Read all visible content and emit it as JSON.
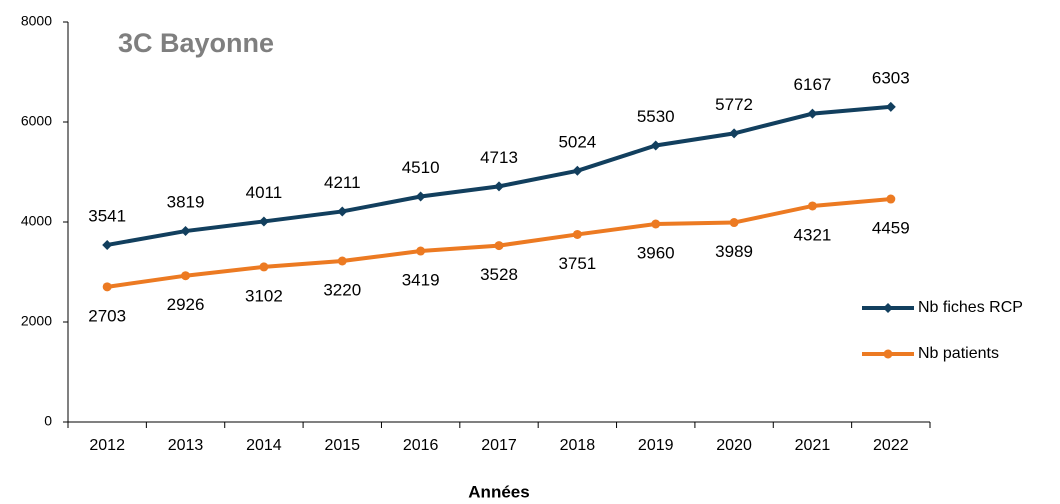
{
  "chart_data": {
    "type": "line",
    "title": "3C Bayonne",
    "x_label": "Années",
    "categories": [
      "2012",
      "2013",
      "2014",
      "2015",
      "2016",
      "2017",
      "2018",
      "2019",
      "2020",
      "2021",
      "2022"
    ],
    "series": [
      {
        "name": "Nb fiches RCP",
        "color": "#123f5e",
        "marker": "diamond",
        "label_position": "above",
        "values": [
          3541,
          3819,
          4011,
          4211,
          4510,
          4713,
          5024,
          5530,
          5772,
          6167,
          6303
        ]
      },
      {
        "name": "Nb patients",
        "color": "#ec7a22",
        "marker": "circle",
        "label_position": "below",
        "values": [
          2703,
          2926,
          3102,
          3220,
          3419,
          3528,
          3751,
          3960,
          3989,
          4321,
          4459
        ]
      }
    ],
    "ylim": [
      0,
      8000
    ],
    "yticks": [
      0,
      2000,
      4000,
      6000,
      8000
    ],
    "grid": false,
    "legend": "right"
  }
}
